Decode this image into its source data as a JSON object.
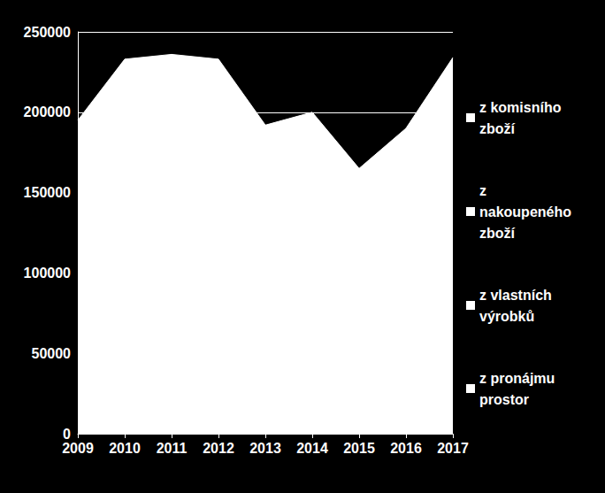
{
  "chart_data": {
    "type": "area",
    "categories": [
      "2009",
      "2010",
      "2011",
      "2012",
      "2013",
      "2014",
      "2015",
      "2016",
      "2017"
    ],
    "series": [
      {
        "name": "z komisního zboží",
        "color": "#ffffff",
        "values": [
          195000,
          233000,
          236000,
          233000,
          192000,
          200000,
          165000,
          190000,
          234000
        ]
      },
      {
        "name": "z nakoupeného zboží",
        "color": "#ffffff",
        "values": [
          null,
          null,
          null,
          null,
          null,
          null,
          null,
          null,
          null
        ]
      },
      {
        "name": "z vlastních výrobků",
        "color": "#ffffff",
        "values": [
          null,
          null,
          null,
          null,
          null,
          null,
          null,
          null,
          null
        ]
      },
      {
        "name": "z pronájmu prostor",
        "color": "#ffffff",
        "values": [
          null,
          null,
          null,
          null,
          null,
          null,
          null,
          null,
          null
        ]
      }
    ],
    "ylim": [
      0,
      250000
    ],
    "yticks": [
      0,
      50000,
      100000,
      150000,
      200000,
      250000
    ],
    "grid": true,
    "legend": "right"
  }
}
